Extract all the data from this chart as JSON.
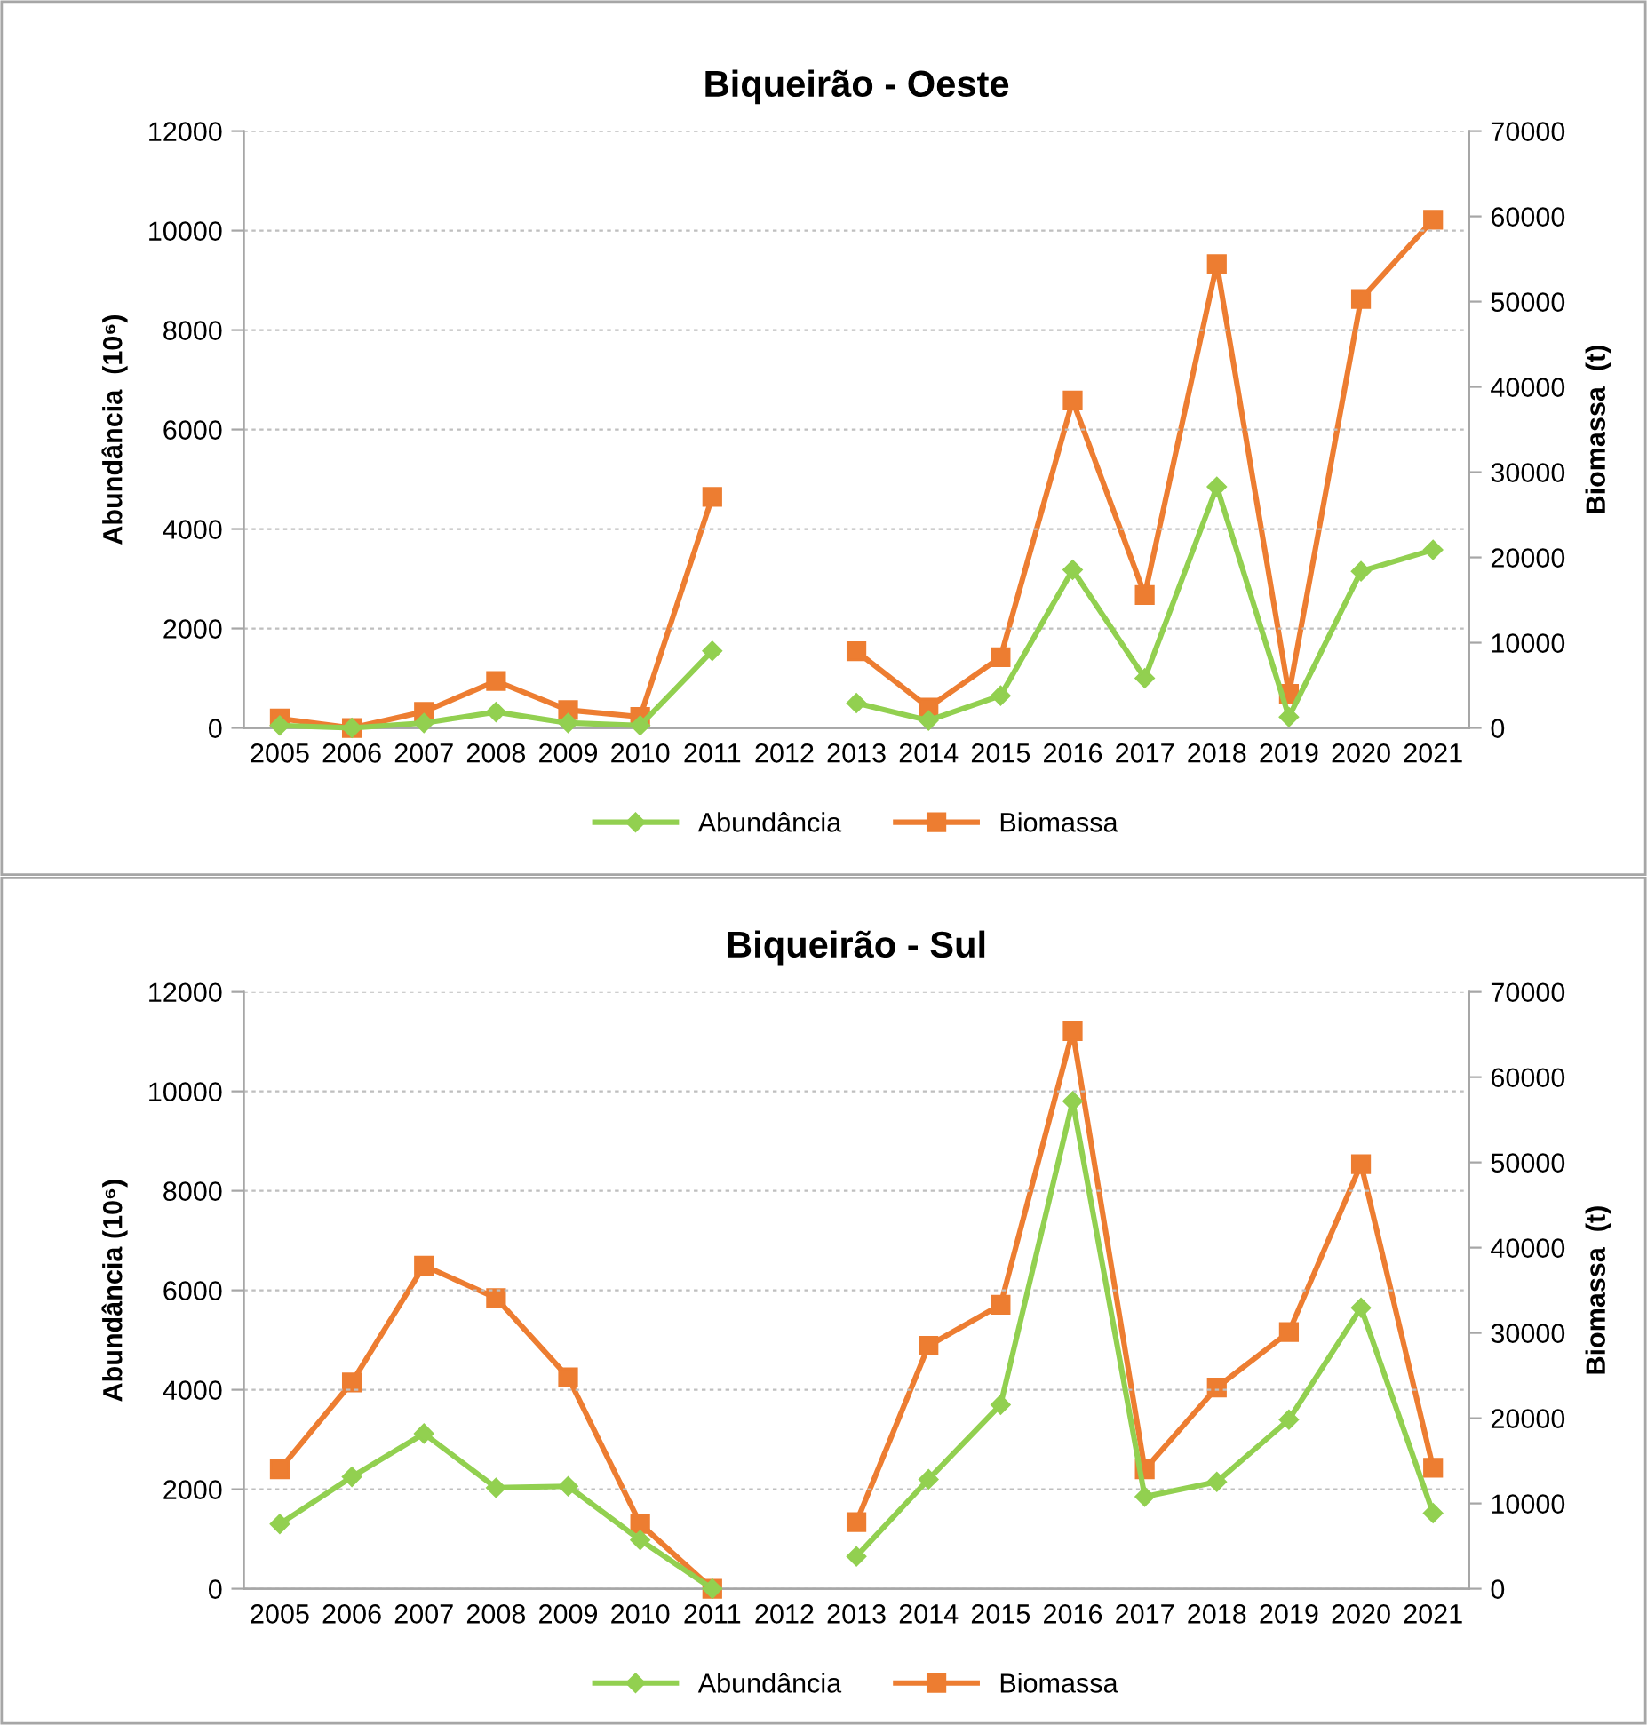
{
  "chart_data": [
    {
      "type": "line",
      "title": "Biqueirão - Oeste",
      "ylabel": "Abundância  (10⁶)",
      "y2label": "Biomassa  (t)",
      "categories": [
        "2005",
        "2006",
        "2007",
        "2008",
        "2009",
        "2010",
        "2011",
        "2012",
        "2013",
        "2014",
        "2015",
        "2016",
        "2017",
        "2018",
        "2019",
        "2020",
        "2021"
      ],
      "series": [
        {
          "name": "Abundância",
          "color": "#92d050",
          "marker": "diamond",
          "values": [
            50,
            0,
            100,
            320,
            100,
            50,
            1550,
            null,
            500,
            150,
            650,
            3180,
            1000,
            4850,
            220,
            3150,
            3580
          ]
        },
        {
          "name": "Biomassa",
          "color": "#ed7d31",
          "marker": "square",
          "axis": "y2",
          "values": [
            1100,
            0,
            1900,
            5500,
            2100,
            1300,
            27100,
            null,
            9000,
            2400,
            8300,
            38400,
            15600,
            54400,
            4000,
            50300,
            59600
          ]
        }
      ],
      "ylim": [
        0,
        12000
      ],
      "yticks": [
        0,
        2000,
        4000,
        6000,
        8000,
        10000,
        12000
      ],
      "y2lim": [
        0,
        70000
      ],
      "y2ticks": [
        0,
        10000,
        20000,
        30000,
        40000,
        50000,
        60000,
        70000
      ],
      "grid": "y",
      "legend": "bottom",
      "line_style": "solid"
    },
    {
      "type": "line",
      "title": "Biqueirão - Sul",
      "ylabel": "Abundância (10⁶)",
      "y2label": "Biomassa  (t)",
      "categories": [
        "2005",
        "2006",
        "2007",
        "2008",
        "2009",
        "2010",
        "2011",
        "2012",
        "2013",
        "2014",
        "2015",
        "2016",
        "2017",
        "2018",
        "2019",
        "2020",
        "2021"
      ],
      "series": [
        {
          "name": "Abundância",
          "color": "#92d050",
          "marker": "diamond",
          "values": [
            1300,
            2250,
            3120,
            2030,
            2060,
            980,
            0,
            null,
            650,
            2200,
            3700,
            9800,
            1850,
            2150,
            3400,
            5650,
            1520
          ]
        },
        {
          "name": "Biomassa",
          "color": "#ed7d31",
          "marker": "square",
          "axis": "y2",
          "values": [
            14000,
            24200,
            37900,
            34100,
            24800,
            7600,
            0,
            null,
            7800,
            28500,
            33300,
            65400,
            14000,
            23600,
            30100,
            49800,
            14200
          ]
        }
      ],
      "ylim": [
        0,
        12000
      ],
      "yticks": [
        0,
        2000,
        4000,
        6000,
        8000,
        10000,
        12000
      ],
      "y2lim": [
        0,
        70000
      ],
      "y2ticks": [
        0,
        10000,
        20000,
        30000,
        40000,
        50000,
        60000,
        70000
      ],
      "grid": "y",
      "legend": "bottom",
      "line_style": "solid"
    }
  ]
}
